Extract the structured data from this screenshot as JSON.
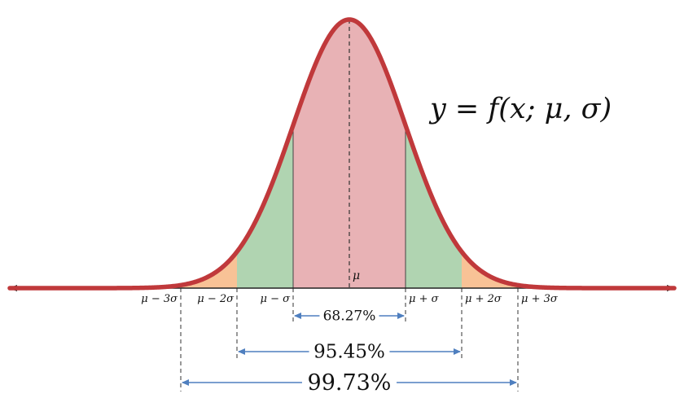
{
  "formula": "y = f(x; μ, σ)",
  "mean_label": "μ",
  "ticks": [
    {
      "k": -3,
      "label": "μ − 3σ"
    },
    {
      "k": -2,
      "label": "μ − 2σ"
    },
    {
      "k": -1,
      "label": "μ − σ"
    },
    {
      "k": 1,
      "label": "μ + σ"
    },
    {
      "k": 2,
      "label": "μ + 2σ"
    },
    {
      "k": 3,
      "label": "μ + 3σ"
    }
  ],
  "intervals": [
    {
      "k": 1,
      "label": "68.27%"
    },
    {
      "k": 2,
      "label": "95.45%"
    },
    {
      "k": 3,
      "label": "99.73%"
    }
  ],
  "colors": {
    "curve": "#c0393b",
    "band_1sigma": "#e8b2b5",
    "band_2sigma": "#b0d4b1",
    "band_3sigma": "#f8c296",
    "arrow": "#4f7fbf",
    "axis": "#222222"
  }
}
